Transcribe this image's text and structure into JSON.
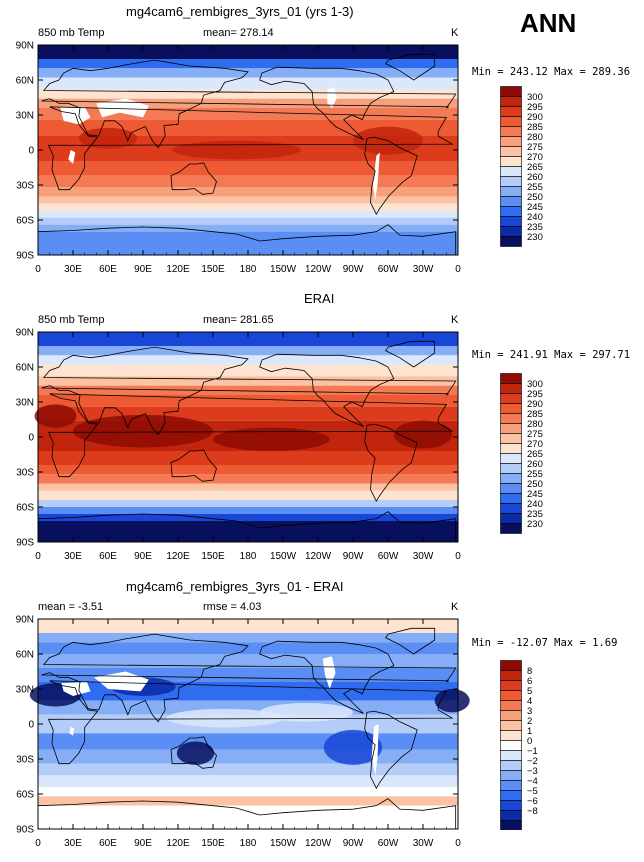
{
  "header": {
    "season": "ANN"
  },
  "colors": {
    "land_mask": "#ffffff",
    "coast": "#000000",
    "temp_scale": [
      "#08105e",
      "#0a2aa8",
      "#1846d6",
      "#2f6cf0",
      "#5a8ef4",
      "#86aef6",
      "#b4ccf8",
      "#dbe7fb",
      "#fde3d0",
      "#fbc3a3",
      "#f8a07b",
      "#f47a55",
      "#ee5a34",
      "#dd3c1c",
      "#c2250d",
      "#8e0c05"
    ],
    "diff_scale": [
      "#08105e",
      "#0a2aa8",
      "#1846d6",
      "#2f6cf0",
      "#5a8ef4",
      "#86aef6",
      "#b4ccf8",
      "#dbe7fb",
      "#ffffff",
      "#fde3d0",
      "#fbc3a3",
      "#f8a07b",
      "#f47a55",
      "#ee5a34",
      "#dd3c1c",
      "#c2250d",
      "#8e0c05"
    ]
  },
  "chart_data": [
    {
      "type": "heatmap",
      "title": "mg4cam6_rembigres_3yrs_01 (yrs 1-3)",
      "variable_label": "850 mb Temp",
      "stat_label": "mean= 278.14",
      "units": "K",
      "minmax_text": "Min = 243.12  Max = 289.36",
      "x_ticks": [
        "0",
        "30E",
        "60E",
        "90E",
        "120E",
        "150E",
        "180",
        "150W",
        "120W",
        "90W",
        "60W",
        "30W",
        "0"
      ],
      "y_ticks": [
        "90N",
        "60N",
        "30N",
        "0",
        "30S",
        "60S",
        "90S"
      ],
      "colorbar_levels": [
        "300",
        "295",
        "290",
        "285",
        "280",
        "275",
        "270",
        "265",
        "260",
        "255",
        "250",
        "245",
        "240",
        "235",
        "230"
      ]
    },
    {
      "type": "heatmap",
      "title": "ERAI",
      "variable_label": "850 mb Temp",
      "stat_label": "mean= 281.65",
      "units": "K",
      "minmax_text": "Min = 241.91  Max = 297.71",
      "x_ticks": [
        "0",
        "30E",
        "60E",
        "90E",
        "120E",
        "150E",
        "180",
        "150W",
        "120W",
        "90W",
        "60W",
        "30W",
        "0"
      ],
      "y_ticks": [
        "90N",
        "60N",
        "30N",
        "0",
        "30S",
        "60S",
        "90S"
      ],
      "colorbar_levels": [
        "300",
        "295",
        "290",
        "285",
        "280",
        "275",
        "270",
        "265",
        "260",
        "255",
        "250",
        "245",
        "240",
        "235",
        "230"
      ]
    },
    {
      "type": "heatmap",
      "title": "mg4cam6_rembigres_3yrs_01 - ERAI",
      "variable_label": "mean =  -3.51",
      "stat_label": "rmse =   4.03",
      "units": "K",
      "minmax_text": "Min = -12.07  Max =   1.69",
      "x_ticks": [
        "0",
        "30E",
        "60E",
        "90E",
        "120E",
        "150E",
        "180",
        "150W",
        "120W",
        "90W",
        "60W",
        "30W",
        "0"
      ],
      "y_ticks": [
        "90N",
        "60N",
        "30N",
        "0",
        "30S",
        "60S",
        "90S"
      ],
      "colorbar_levels": [
        "8",
        "6",
        "5",
        "4",
        "3",
        "2",
        "1",
        "0",
        "−1",
        "−2",
        "−3",
        "−4",
        "−5",
        "−6",
        "−8"
      ]
    }
  ]
}
